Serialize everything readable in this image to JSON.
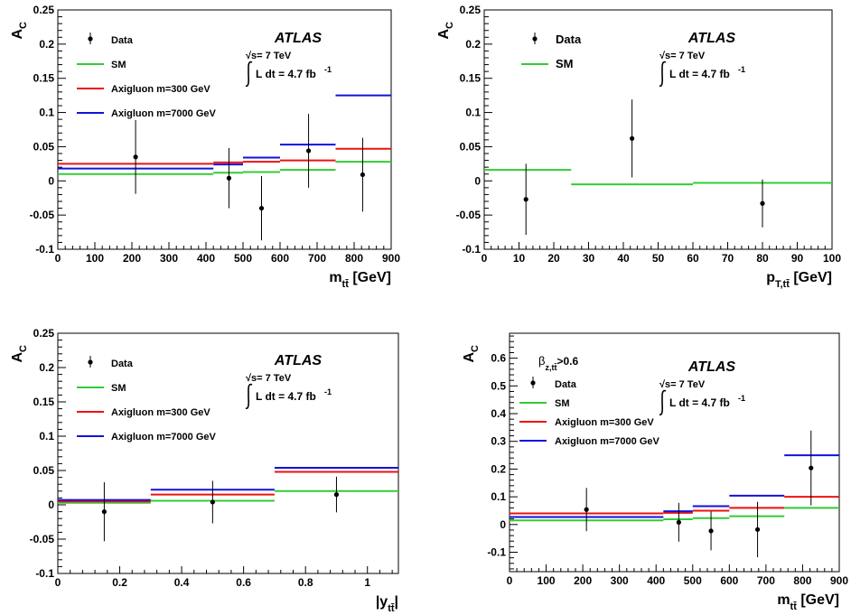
{
  "colors": {
    "data": "#000000",
    "sm": "#33cc33",
    "axigluon_300": "#ee1111",
    "axigluon_7000": "#1111dd"
  },
  "chart_data": [
    {
      "type": "scatter",
      "ylabel_main": "A",
      "ylabel_sub": "C",
      "xlabel_main": "m",
      "xlabel_sub": "tt̄",
      "xlabel_unit": " [GeV]",
      "xlim": [
        0,
        900
      ],
      "ylim": [
        -0.1,
        0.25
      ],
      "xticks": [
        0,
        100,
        200,
        300,
        400,
        500,
        600,
        700,
        800,
        900
      ],
      "xtick_labels": [
        "0",
        "100",
        "200",
        "300",
        "400",
        "500",
        "600",
        "700",
        "800",
        "900"
      ],
      "yticks": [
        -0.1,
        -0.05,
        0,
        0.05,
        0.1,
        0.15,
        0.2,
        0.25
      ],
      "ytick_labels": [
        "-0.1",
        "-0.05",
        "0",
        "0.05",
        "0.1",
        "0.15",
        "0.2",
        "0.25"
      ],
      "atlas": "ATLAS",
      "sqrt_s": "√s= 7 TeV",
      "lumi": "L dt = 4.7 fb",
      "lumi_exp": "-1",
      "legend": [
        "Data",
        "SM",
        "Axigluon m=300 GeV",
        "Axigluon m=7000 GeV"
      ],
      "data_points": [
        {
          "x": 210,
          "y": 0.035,
          "err": 0.054
        },
        {
          "x": 462,
          "y": 0.004,
          "err": 0.044
        },
        {
          "x": 550,
          "y": -0.04,
          "err": 0.047
        },
        {
          "x": 677,
          "y": 0.044,
          "err": 0.054
        },
        {
          "x": 823,
          "y": 0.009,
          "err": 0.054
        }
      ],
      "series": [
        {
          "name": "SM",
          "key": "sm",
          "bins": [
            [
              0,
              420,
              0.01
            ],
            [
              420,
              500,
              0.012
            ],
            [
              500,
              600,
              0.013
            ],
            [
              600,
              750,
              0.016
            ],
            [
              750,
              900,
              0.028
            ]
          ]
        },
        {
          "name": "Axigluon m=300 GeV",
          "key": "axigluon_300",
          "bins": [
            [
              0,
              420,
              0.025
            ],
            [
              420,
              500,
              0.027
            ],
            [
              500,
              600,
              0.028
            ],
            [
              600,
              750,
              0.03
            ],
            [
              750,
              900,
              0.047
            ]
          ]
        },
        {
          "name": "Axigluon m=7000 GeV",
          "key": "axigluon_7000",
          "bins": [
            [
              0,
              420,
              0.018
            ],
            [
              420,
              500,
              0.024
            ],
            [
              500,
              600,
              0.034
            ],
            [
              600,
              750,
              0.053
            ],
            [
              750,
              900,
              0.125
            ]
          ]
        }
      ]
    },
    {
      "type": "scatter",
      "ylabel_main": "A",
      "ylabel_sub": "C",
      "xlabel_main": "p",
      "xlabel_sub": "T,tt̄",
      "xlabel_unit": " [GeV]",
      "xlim": [
        0,
        100
      ],
      "ylim": [
        -0.1,
        0.25
      ],
      "xticks": [
        0,
        10,
        20,
        30,
        40,
        50,
        60,
        70,
        80,
        90,
        100
      ],
      "xtick_labels": [
        "0",
        "10",
        "20",
        "30",
        "40",
        "50",
        "60",
        "70",
        "80",
        "90",
        "100"
      ],
      "yticks": [
        -0.1,
        -0.05,
        0,
        0.05,
        0.1,
        0.15,
        0.2,
        0.25
      ],
      "ytick_labels": [
        "-0.1",
        "-0.05",
        "0",
        "0.05",
        "0.1",
        "0.15",
        "0.2",
        "0.25"
      ],
      "atlas": "ATLAS",
      "sqrt_s": "√s= 7 TeV",
      "lumi": "L dt = 4.7 fb",
      "lumi_exp": "-1",
      "legend": [
        "Data",
        "SM"
      ],
      "data_points": [
        {
          "x": 12,
          "y": -0.027,
          "err": 0.052
        },
        {
          "x": 42.5,
          "y": 0.062,
          "err": 0.057
        },
        {
          "x": 80,
          "y": -0.033,
          "err": 0.035
        }
      ],
      "series": [
        {
          "name": "SM",
          "key": "sm",
          "bins": [
            [
              0,
              25,
              0.016
            ],
            [
              25,
              60,
              -0.005
            ],
            [
              60,
              100,
              -0.003
            ]
          ]
        }
      ]
    },
    {
      "type": "scatter",
      "ylabel_main": "A",
      "ylabel_sub": "C",
      "xlabel_main": "|y",
      "xlabel_sub": "tt̄",
      "xlabel_unit": "|",
      "xlim": [
        0,
        1.1
      ],
      "ylim": [
        -0.1,
        0.25
      ],
      "xticks": [
        0,
        0.2,
        0.4,
        0.6,
        0.8,
        1
      ],
      "xtick_labels": [
        "0",
        "0.2",
        "0.4",
        "0.6",
        "0.8",
        "1"
      ],
      "yticks": [
        -0.1,
        -0.05,
        0,
        0.05,
        0.1,
        0.15,
        0.2,
        0.25
      ],
      "ytick_labels": [
        "-0.1",
        "-0.05",
        "0",
        "0.05",
        "0.1",
        "0.15",
        "0.2",
        "0.25"
      ],
      "atlas": "ATLAS",
      "sqrt_s": "√s= 7 TeV",
      "lumi": "L dt = 4.7 fb",
      "lumi_exp": "-1",
      "legend": [
        "Data",
        "SM",
        "Axigluon m=300 GeV",
        "Axigluon m=7000 GeV"
      ],
      "data_points": [
        {
          "x": 0.15,
          "y": -0.01,
          "err": 0.043
        },
        {
          "x": 0.5,
          "y": 0.004,
          "err": 0.031
        },
        {
          "x": 0.9,
          "y": 0.015,
          "err": 0.026
        }
      ],
      "series": [
        {
          "name": "SM",
          "key": "sm",
          "bins": [
            [
              0,
              0.3,
              0.003
            ],
            [
              0.3,
              0.7,
              0.006
            ],
            [
              0.7,
              1.1,
              0.02
            ]
          ]
        },
        {
          "name": "Axigluon m=300 GeV",
          "key": "axigluon_300",
          "bins": [
            [
              0,
              0.3,
              0.005
            ],
            [
              0.3,
              0.7,
              0.015
            ],
            [
              0.7,
              1.1,
              0.048
            ]
          ]
        },
        {
          "name": "Axigluon m=7000 GeV",
          "key": "axigluon_7000",
          "bins": [
            [
              0,
              0.3,
              0.007
            ],
            [
              0.3,
              0.7,
              0.022
            ],
            [
              0.7,
              1.1,
              0.054
            ]
          ]
        }
      ]
    },
    {
      "type": "scatter",
      "ylabel_main": "A",
      "ylabel_sub": "C",
      "xlabel_main": "m",
      "xlabel_sub": "tt̄",
      "xlabel_unit": " [GeV]",
      "xlim": [
        0,
        900
      ],
      "ylim": [
        -0.17,
        0.69
      ],
      "xticks": [
        0,
        100,
        200,
        300,
        400,
        500,
        600,
        700,
        800,
        900
      ],
      "xtick_labels": [
        "0",
        "100",
        "200",
        "300",
        "400",
        "500",
        "600",
        "700",
        "800",
        "900"
      ],
      "yticks": [
        -0.1,
        0,
        0.1,
        0.2,
        0.3,
        0.4,
        0.5,
        0.6
      ],
      "ytick_labels": [
        "-0.1",
        "0",
        "0.1",
        "0.2",
        "0.3",
        "0.4",
        "0.5",
        "0.6"
      ],
      "cut_label": "β",
      "cut_sub": "z,tt̄",
      "cut_value": ">0.6",
      "atlas": "ATLAS",
      "sqrt_s": "√s= 7 TeV",
      "lumi": "L dt = 4.7 fb",
      "lumi_exp": "-1",
      "legend": [
        "Data",
        "SM",
        "Axigluon m=300 GeV",
        "Axigluon m=7000 GeV"
      ],
      "data_points": [
        {
          "x": 210,
          "y": 0.054,
          "err": 0.078
        },
        {
          "x": 462,
          "y": 0.008,
          "err": 0.07
        },
        {
          "x": 550,
          "y": -0.023,
          "err": 0.07
        },
        {
          "x": 677,
          "y": -0.018,
          "err": 0.1
        },
        {
          "x": 823,
          "y": 0.204,
          "err": 0.135
        }
      ],
      "series": [
        {
          "name": "SM",
          "key": "sm",
          "bins": [
            [
              0,
              420,
              0.015
            ],
            [
              420,
              500,
              0.019
            ],
            [
              500,
              600,
              0.023
            ],
            [
              600,
              750,
              0.03
            ],
            [
              750,
              900,
              0.06
            ]
          ]
        },
        {
          "name": "Axigluon m=300 GeV",
          "key": "axigluon_300",
          "bins": [
            [
              0,
              420,
              0.04
            ],
            [
              420,
              500,
              0.042
            ],
            [
              500,
              600,
              0.05
            ],
            [
              600,
              750,
              0.06
            ],
            [
              750,
              900,
              0.1
            ]
          ]
        },
        {
          "name": "Axigluon m=7000 GeV",
          "key": "axigluon_7000",
          "bins": [
            [
              0,
              420,
              0.027
            ],
            [
              420,
              500,
              0.048
            ],
            [
              500,
              600,
              0.066
            ],
            [
              600,
              750,
              0.104
            ],
            [
              750,
              900,
              0.25
            ]
          ]
        }
      ]
    }
  ]
}
